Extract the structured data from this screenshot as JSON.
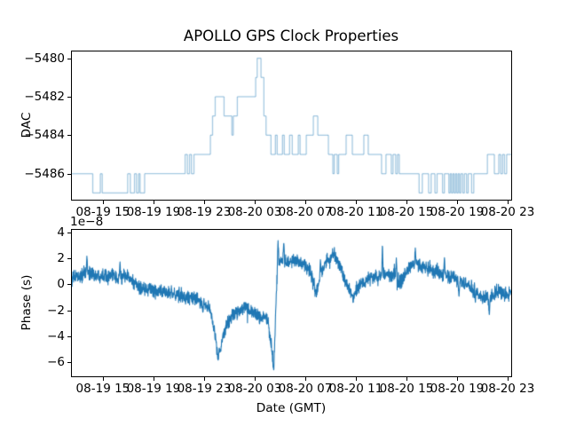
{
  "figure": {
    "title": "APOLLO GPS Clock Properties",
    "background_color": "#ffffff",
    "line_color": "#1f77b4"
  },
  "chart_data": [
    {
      "type": "line",
      "subplot": "top",
      "series_name": "DAC",
      "ylabel": "DAC",
      "line_style": "steps-post",
      "line_color": "#1f77b4",
      "line_alpha": 0.4,
      "x_units": "hours since 08-19 00:00 GMT",
      "xlim": [
        12.55,
        47.28
      ],
      "ylim": [
        -5487.35,
        -5479.65
      ],
      "yticks": [
        -5480,
        -5482,
        -5484,
        -5486
      ],
      "ytick_labels": [
        "−5480",
        "−5482",
        "−5484",
        "−5486"
      ],
      "xticks": [
        15,
        19,
        23,
        27,
        31,
        35,
        39,
        43,
        47
      ],
      "xtick_labels": [
        "08-19 15",
        "08-19 19",
        "08-19 23",
        "08-20 03",
        "08-20 07",
        "08-20 11",
        "08-20 15",
        "08-20 19",
        "08-20 23"
      ],
      "grid": false,
      "legend": "none",
      "steps": [
        [
          12.55,
          -5486
        ],
        [
          14.2,
          -5487
        ],
        [
          14.8,
          -5486
        ],
        [
          14.95,
          -5487
        ],
        [
          16.96,
          -5486
        ],
        [
          17.17,
          -5487
        ],
        [
          17.5,
          -5486
        ],
        [
          17.66,
          -5487
        ],
        [
          17.83,
          -5486
        ],
        [
          17.94,
          -5487
        ],
        [
          18.3,
          -5486
        ],
        [
          21.5,
          -5485
        ],
        [
          21.68,
          -5486
        ],
        [
          21.85,
          -5485
        ],
        [
          22.0,
          -5486
        ],
        [
          22.2,
          -5485
        ],
        [
          23.5,
          -5484
        ],
        [
          23.67,
          -5483
        ],
        [
          23.88,
          -5482
        ],
        [
          24.58,
          -5483
        ],
        [
          25.2,
          -5484
        ],
        [
          25.31,
          -5483
        ],
        [
          25.63,
          -5482
        ],
        [
          27.08,
          -5481
        ],
        [
          27.2,
          -5480
        ],
        [
          27.5,
          -5481
        ],
        [
          27.73,
          -5483
        ],
        [
          27.9,
          -5484
        ],
        [
          28.29,
          -5485
        ],
        [
          28.64,
          -5484
        ],
        [
          28.78,
          -5485
        ],
        [
          29.2,
          -5484
        ],
        [
          29.34,
          -5485
        ],
        [
          29.76,
          -5484
        ],
        [
          29.97,
          -5485
        ],
        [
          30.45,
          -5484
        ],
        [
          30.59,
          -5485
        ],
        [
          31.08,
          -5484
        ],
        [
          31.64,
          -5483
        ],
        [
          31.99,
          -5484
        ],
        [
          32.83,
          -5485
        ],
        [
          33.18,
          -5486
        ],
        [
          33.29,
          -5485
        ],
        [
          33.53,
          -5486
        ],
        [
          33.64,
          -5485
        ],
        [
          34.23,
          -5484
        ],
        [
          34.72,
          -5485
        ],
        [
          35.63,
          -5484
        ],
        [
          35.98,
          -5485
        ],
        [
          37.03,
          -5486
        ],
        [
          37.38,
          -5485
        ],
        [
          37.8,
          -5486
        ],
        [
          37.94,
          -5485
        ],
        [
          38.15,
          -5486
        ],
        [
          38.29,
          -5485
        ],
        [
          38.43,
          -5486
        ],
        [
          40.0,
          -5487
        ],
        [
          40.25,
          -5486
        ],
        [
          40.75,
          -5487
        ],
        [
          40.95,
          -5486
        ],
        [
          41.25,
          -5487
        ],
        [
          41.42,
          -5486
        ],
        [
          41.85,
          -5487
        ],
        [
          42.0,
          -5486
        ],
        [
          42.35,
          -5487
        ],
        [
          42.46,
          -5486
        ],
        [
          42.56,
          -5487
        ],
        [
          42.67,
          -5486
        ],
        [
          42.77,
          -5487
        ],
        [
          42.88,
          -5486
        ],
        [
          42.98,
          -5487
        ],
        [
          43.09,
          -5486
        ],
        [
          43.19,
          -5487
        ],
        [
          43.3,
          -5486
        ],
        [
          43.45,
          -5487
        ],
        [
          43.58,
          -5486
        ],
        [
          43.75,
          -5487
        ],
        [
          43.88,
          -5486
        ],
        [
          44.15,
          -5487
        ],
        [
          44.32,
          -5486
        ],
        [
          45.4,
          -5485
        ],
        [
          45.95,
          -5486
        ],
        [
          46.3,
          -5485
        ],
        [
          46.45,
          -5486
        ],
        [
          46.6,
          -5485
        ],
        [
          46.75,
          -5486
        ],
        [
          46.92,
          -5485
        ],
        [
          47.28,
          -5485
        ]
      ]
    },
    {
      "type": "line",
      "subplot": "bottom",
      "series_name": "Phase",
      "ylabel": "Phase (s)",
      "xlabel": "Date (GMT)",
      "offset_text": "1e−8",
      "line_color": "#1f77b4",
      "line_alpha": 1.0,
      "x_units": "hours since 08-19 00:00 GMT",
      "value_units": "1e-8 s",
      "xlim": [
        12.55,
        47.28
      ],
      "ylim": [
        -7.09,
        4.19
      ],
      "yticks": [
        4,
        2,
        0,
        -2,
        -4,
        -6
      ],
      "ytick_labels": [
        "4",
        "2",
        "0",
        "−2",
        "−4",
        "−6"
      ],
      "xticks": [
        15,
        19,
        23,
        27,
        31,
        35,
        39,
        43,
        47
      ],
      "xtick_labels": [
        "08-19 15",
        "08-19 19",
        "08-19 23",
        "08-20 03",
        "08-20 07",
        "08-20 11",
        "08-20 15",
        "08-20 19",
        "08-20 23"
      ],
      "grid": false,
      "legend": "none",
      "baseline_anchors": [
        [
          12.55,
          0.45
        ],
        [
          13.0,
          0.6
        ],
        [
          13.4,
          0.7
        ],
        [
          13.8,
          0.85
        ],
        [
          14.2,
          0.8
        ],
        [
          14.7,
          0.65
        ],
        [
          15.2,
          0.8
        ],
        [
          15.7,
          0.7
        ],
        [
          16.1,
          0.35
        ],
        [
          16.5,
          0.55
        ],
        [
          16.9,
          0.7
        ],
        [
          17.2,
          0.35
        ],
        [
          17.6,
          0.0
        ],
        [
          18.0,
          -0.25
        ],
        [
          18.5,
          -0.45
        ],
        [
          19.0,
          -0.5
        ],
        [
          19.5,
          -0.55
        ],
        [
          20.0,
          -0.65
        ],
        [
          20.5,
          -0.75
        ],
        [
          21.0,
          -0.85
        ],
        [
          21.5,
          -0.95
        ],
        [
          22.0,
          -1.1
        ],
        [
          22.5,
          -1.2
        ],
        [
          23.0,
          -1.4
        ],
        [
          23.4,
          -1.8
        ],
        [
          23.7,
          -2.9
        ],
        [
          23.9,
          -4.2
        ],
        [
          24.1,
          -5.6
        ],
        [
          24.3,
          -4.9
        ],
        [
          24.55,
          -3.9
        ],
        [
          24.8,
          -3.1
        ],
        [
          25.1,
          -2.6
        ],
        [
          25.5,
          -2.15
        ],
        [
          26.0,
          -1.9
        ],
        [
          26.3,
          -1.6
        ],
        [
          26.7,
          -2.05
        ],
        [
          27.1,
          -2.3
        ],
        [
          27.5,
          -2.5
        ],
        [
          27.9,
          -2.6
        ],
        [
          28.1,
          -3.2
        ],
        [
          28.3,
          -4.6
        ],
        [
          28.5,
          -6.6
        ],
        [
          28.6,
          -4.0
        ],
        [
          28.7,
          -1.0
        ],
        [
          28.8,
          1.2
        ],
        [
          29.0,
          1.7
        ],
        [
          29.2,
          1.85
        ],
        [
          29.6,
          1.75
        ],
        [
          30.0,
          1.85
        ],
        [
          30.5,
          1.75
        ],
        [
          31.0,
          1.5
        ],
        [
          31.4,
          1.05
        ],
        [
          31.85,
          -0.75
        ],
        [
          32.1,
          0.2
        ],
        [
          32.4,
          1.2
        ],
        [
          32.8,
          1.9
        ],
        [
          33.2,
          2.4
        ],
        [
          33.5,
          1.9
        ],
        [
          33.9,
          1.1
        ],
        [
          34.3,
          -0.1
        ],
        [
          34.75,
          -1.0
        ],
        [
          35.1,
          -0.4
        ],
        [
          35.5,
          0.15
        ],
        [
          36.0,
          0.3
        ],
        [
          36.4,
          0.45
        ],
        [
          36.8,
          0.6
        ],
        [
          37.1,
          0.7
        ],
        [
          37.5,
          0.75
        ],
        [
          38.0,
          0.6
        ],
        [
          38.4,
          0.2
        ],
        [
          38.7,
          0.5
        ],
        [
          39.1,
          1.1
        ],
        [
          39.5,
          1.5
        ],
        [
          39.8,
          1.6
        ],
        [
          40.2,
          1.4
        ],
        [
          40.7,
          1.2
        ],
        [
          41.2,
          1.05
        ],
        [
          41.7,
          0.95
        ],
        [
          42.2,
          0.8
        ],
        [
          42.7,
          0.55
        ],
        [
          43.1,
          0.25
        ],
        [
          43.5,
          0.1
        ],
        [
          44.0,
          -0.15
        ],
        [
          44.4,
          -0.45
        ],
        [
          44.8,
          -0.9
        ],
        [
          45.2,
          -1.1
        ],
        [
          45.5,
          -1.2
        ],
        [
          45.9,
          -0.7
        ],
        [
          46.3,
          -0.5
        ],
        [
          46.7,
          -0.8
        ],
        [
          47.0,
          -0.8
        ],
        [
          47.28,
          -0.6
        ]
      ],
      "spikes": [
        [
          13.74,
          2.35
        ],
        [
          16.35,
          1.9
        ],
        [
          22.9,
          -2.3
        ],
        [
          28.85,
          3.6
        ],
        [
          29.3,
          3.4
        ],
        [
          32.2,
          2.1
        ],
        [
          37.1,
          3.35
        ],
        [
          38.2,
          2.2
        ],
        [
          39.7,
          2.9
        ],
        [
          42.0,
          2.2
        ],
        [
          43.15,
          -1.2
        ],
        [
          44.45,
          -1.5
        ],
        [
          45.55,
          -2.6
        ]
      ],
      "noise_std": 0.25,
      "samples": 2200,
      "seed": 1234
    }
  ]
}
